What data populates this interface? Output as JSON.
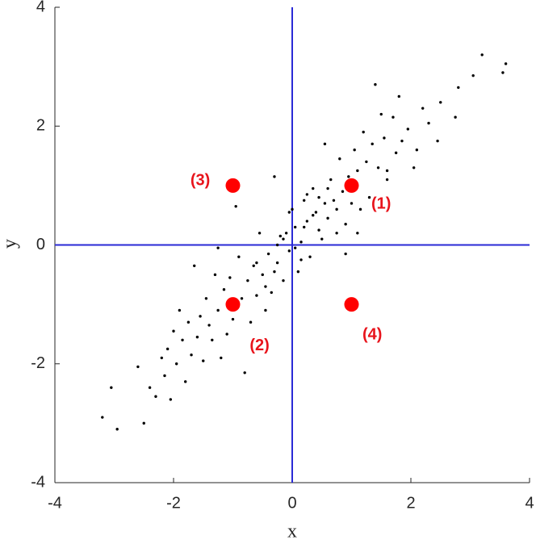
{
  "chart_data": {
    "type": "scatter",
    "xlabel": "x",
    "ylabel": "y",
    "xlim": [
      -4,
      4
    ],
    "ylim": [
      -4,
      4
    ],
    "xticks": [
      -4,
      -2,
      0,
      2,
      4
    ],
    "yticks": [
      -4,
      -2,
      0,
      2,
      4
    ],
    "reference_lines": {
      "x": [
        0
      ],
      "y": [
        0
      ],
      "color": "#2a2ad6"
    },
    "series": [
      {
        "color": "#000000",
        "marker_size": 1.7,
        "x": [
          3.6,
          3.55,
          3.2,
          3.05,
          2.8,
          2.75,
          2.5,
          2.45,
          2.3,
          2.2,
          2.05,
          1.95,
          1.8,
          1.75,
          1.7,
          1.6,
          1.55,
          1.5,
          1.45,
          1.4,
          1.35,
          1.3,
          1.25,
          1.2,
          1.15,
          1.1,
          1.05,
          1.0,
          0.95,
          0.9,
          0.85,
          0.8,
          0.75,
          0.7,
          0.65,
          0.6,
          0.55,
          0.5,
          0.45,
          0.4,
          0.35,
          0.3,
          0.25,
          0.2,
          0.15,
          0.1,
          0.05,
          0.0,
          -0.05,
          -0.1,
          -0.15,
          -0.2,
          -0.25,
          -0.3,
          -0.35,
          -0.4,
          -0.45,
          -0.5,
          -0.55,
          -0.6,
          -0.65,
          -0.7,
          -0.75,
          -0.8,
          -0.85,
          -0.9,
          -0.95,
          -1.0,
          -1.05,
          -1.1,
          -1.15,
          -1.2,
          -1.25,
          -1.3,
          -1.35,
          -1.4,
          -1.45,
          -1.5,
          -1.55,
          -1.6,
          -1.65,
          -1.7,
          -1.75,
          -1.8,
          -1.85,
          -1.9,
          -1.95,
          -2.0,
          -2.05,
          -2.1,
          -2.15,
          -2.2,
          -2.3,
          -2.4,
          -2.5,
          -2.6,
          -2.95,
          -3.05,
          -3.2,
          0.9,
          0.05,
          -0.05,
          0.2,
          -0.25,
          0.35,
          0.6,
          -0.6,
          0.75,
          1.1,
          -0.3,
          0.15,
          0.45,
          -0.15,
          0.55,
          -0.45,
          0.25,
          1.85,
          2.1,
          1.6,
          -1.25
        ],
        "values": [
          3.05,
          2.9,
          3.2,
          2.85,
          2.65,
          2.15,
          2.4,
          1.75,
          2.05,
          2.3,
          1.3,
          1.95,
          2.5,
          1.55,
          2.15,
          1.1,
          1.8,
          2.2,
          1.3,
          2.7,
          1.7,
          0.8,
          1.4,
          1.9,
          0.6,
          1.25,
          1.6,
          0.7,
          1.15,
          0.35,
          0.9,
          1.45,
          0.2,
          0.75,
          1.1,
          0.45,
          1.7,
          0.1,
          0.8,
          0.55,
          0.95,
          -0.2,
          0.4,
          0.75,
          0.05,
          -0.45,
          0.3,
          0.6,
          -0.1,
          0.2,
          -0.6,
          0.15,
          -0.3,
          1.15,
          -0.8,
          -0.15,
          -1.1,
          -0.5,
          0.2,
          -0.85,
          -0.35,
          -1.3,
          -0.6,
          -2.15,
          -0.9,
          -0.2,
          0.65,
          -1.25,
          -0.55,
          -1.5,
          -0.75,
          -1.9,
          -1.1,
          -0.5,
          -1.6,
          -1.35,
          -0.9,
          -1.95,
          -1.2,
          -1.55,
          -0.35,
          -1.85,
          -1.3,
          -2.3,
          -1.6,
          -1.1,
          -2.0,
          -1.45,
          -2.6,
          -1.75,
          -2.2,
          -1.9,
          -2.55,
          -2.4,
          -3.0,
          -2.05,
          -3.1,
          -2.4,
          -2.9,
          -0.15,
          -0.05,
          0.55,
          0.3,
          0.0,
          0.5,
          0.95,
          -0.3,
          0.6,
          0.2,
          -0.45,
          -0.25,
          0.25,
          0.1,
          0.7,
          -0.7,
          0.85,
          1.75,
          1.6,
          1.25,
          -0.05
        ]
      },
      {
        "color": "#ff0000",
        "marker_size": 9,
        "x": [
          1,
          -1,
          -1,
          1
        ],
        "values": [
          1,
          -1,
          1,
          -1
        ]
      }
    ],
    "annotations": [
      {
        "text": "(1)",
        "x": 1.5,
        "y": 0.68
      },
      {
        "text": "(2)",
        "x": -0.55,
        "y": -1.7
      },
      {
        "text": "(3)",
        "x": -1.55,
        "y": 1.08
      },
      {
        "text": "(4)",
        "x": 1.35,
        "y": -1.52
      }
    ]
  }
}
